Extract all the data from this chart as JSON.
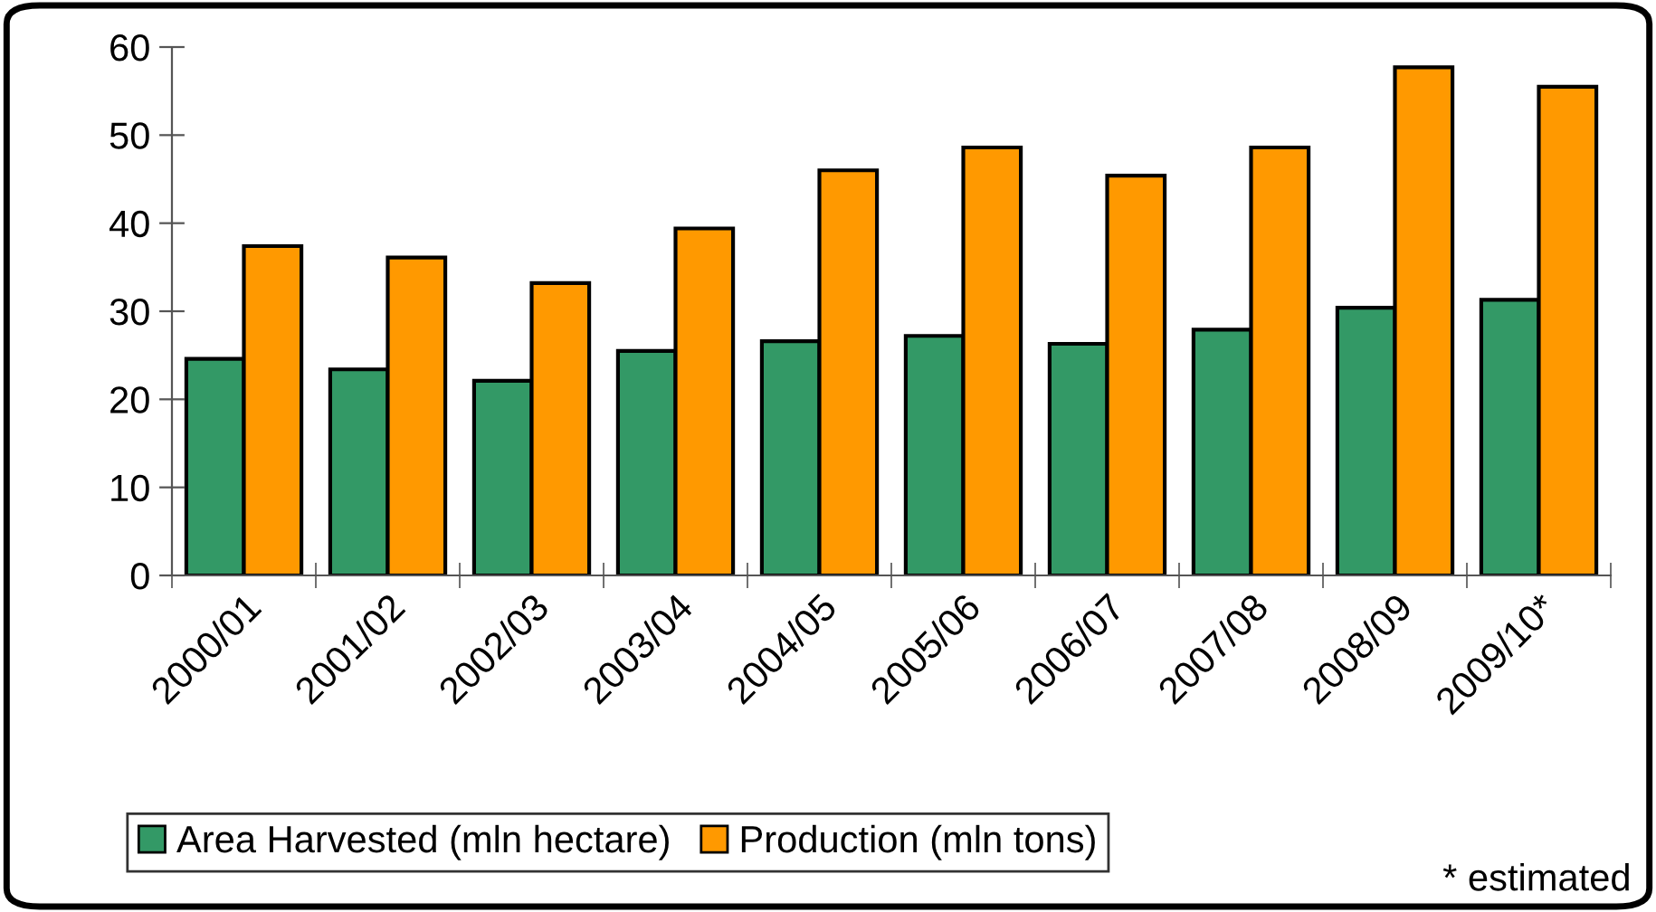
{
  "chart_data": {
    "type": "bar",
    "categories": [
      "2000/01",
      "2001/02",
      "2002/03",
      "2003/04",
      "2004/05",
      "2005/06",
      "2006/07",
      "2007/08",
      "2008/09",
      "2009/10*"
    ],
    "series": [
      {
        "name": "Area Harvested (mln hectare)",
        "color": "#339966",
        "values": [
          24.6,
          23.4,
          22.1,
          25.5,
          26.6,
          27.2,
          26.3,
          27.9,
          30.4,
          31.3
        ]
      },
      {
        "name": "Production (mln tons)",
        "color": "#ff9900",
        "values": [
          37.4,
          36.1,
          33.2,
          39.4,
          46.0,
          48.6,
          45.4,
          48.6,
          57.7,
          55.5
        ]
      }
    ],
    "ylim": [
      0,
      60
    ],
    "yticks": [
      0,
      10,
      20,
      30,
      40,
      50,
      60
    ],
    "grid": false,
    "legend": "bottom",
    "annotations": [
      "* estimated"
    ]
  }
}
